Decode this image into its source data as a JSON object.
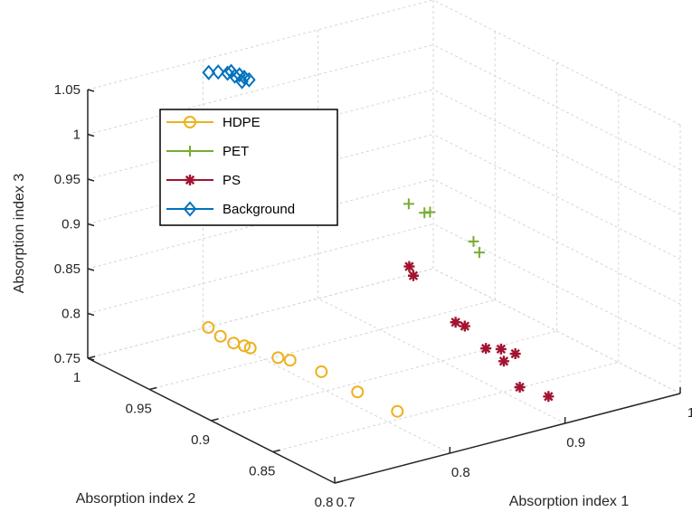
{
  "chart_data": {
    "type": "scatter",
    "title": "",
    "xlabel": "Absorption index 1",
    "ylabel": "Absorption index 2",
    "zlabel": "Absorption index 3",
    "xlim": [
      0.7,
      1.0
    ],
    "ylim": [
      0.8,
      1.0
    ],
    "zlim": [
      0.75,
      1.05
    ],
    "x_ticks": [
      "0.7",
      "0.8",
      "0.9",
      "1"
    ],
    "y_ticks": [
      "0.8",
      "0.85",
      "0.9",
      "0.95",
      "1"
    ],
    "z_ticks": [
      "0.75",
      "0.8",
      "0.85",
      "0.9",
      "0.95",
      "1",
      "1.05"
    ],
    "grid": true,
    "legend_position": "top-left",
    "series": [
      {
        "name": "HDPE",
        "marker": "circle",
        "color": "#EDB120",
        "points": [
          [
            0.735,
            0.935,
            0.818
          ],
          [
            0.738,
            0.928,
            0.812
          ],
          [
            0.743,
            0.922,
            0.807
          ],
          [
            0.748,
            0.918,
            0.805
          ],
          [
            0.75,
            0.915,
            0.804
          ],
          [
            0.758,
            0.9,
            0.801
          ],
          [
            0.761,
            0.893,
            0.802
          ],
          [
            0.771,
            0.877,
            0.797
          ],
          [
            0.782,
            0.858,
            0.784
          ],
          [
            0.793,
            0.836,
            0.774
          ]
        ]
      },
      {
        "name": "PET",
        "marker": "plus",
        "color": "#77AC30",
        "points": [
          [
            0.909,
            0.935,
            0.898
          ],
          [
            0.913,
            0.926,
            0.893
          ],
          [
            0.92,
            0.928,
            0.89
          ],
          [
            0.932,
            0.904,
            0.87
          ],
          [
            0.936,
            0.903,
            0.857
          ]
        ]
      },
      {
        "name": "PS",
        "marker": "asterisk",
        "color": "#A2142F",
        "points": [
          [
            0.883,
            0.907,
            0.846
          ],
          [
            0.888,
            0.915,
            0.849
          ],
          [
            0.895,
            0.884,
            0.806
          ],
          [
            0.902,
            0.866,
            0.787
          ],
          [
            0.903,
            0.884,
            0.799
          ],
          [
            0.909,
            0.858,
            0.776
          ],
          [
            0.913,
            0.864,
            0.784
          ],
          [
            0.919,
            0.858,
            0.781
          ],
          [
            0.91,
            0.846,
            0.755
          ],
          [
            0.921,
            0.833,
            0.75
          ]
        ]
      },
      {
        "name": "Background",
        "marker": "diamond",
        "color": "#0072BD",
        "points": [
          [
            0.805,
            1.0,
            1.034
          ],
          [
            0.81,
            0.997,
            1.035
          ],
          [
            0.816,
            0.995,
            1.033
          ],
          [
            0.817,
            0.993,
            1.036
          ],
          [
            0.818,
            0.991,
            1.032
          ],
          [
            0.821,
            0.99,
            1.033
          ],
          [
            0.823,
            0.988,
            1.031
          ],
          [
            0.82,
            0.987,
            1.028
          ],
          [
            0.824,
            0.985,
            1.03
          ]
        ]
      }
    ]
  }
}
